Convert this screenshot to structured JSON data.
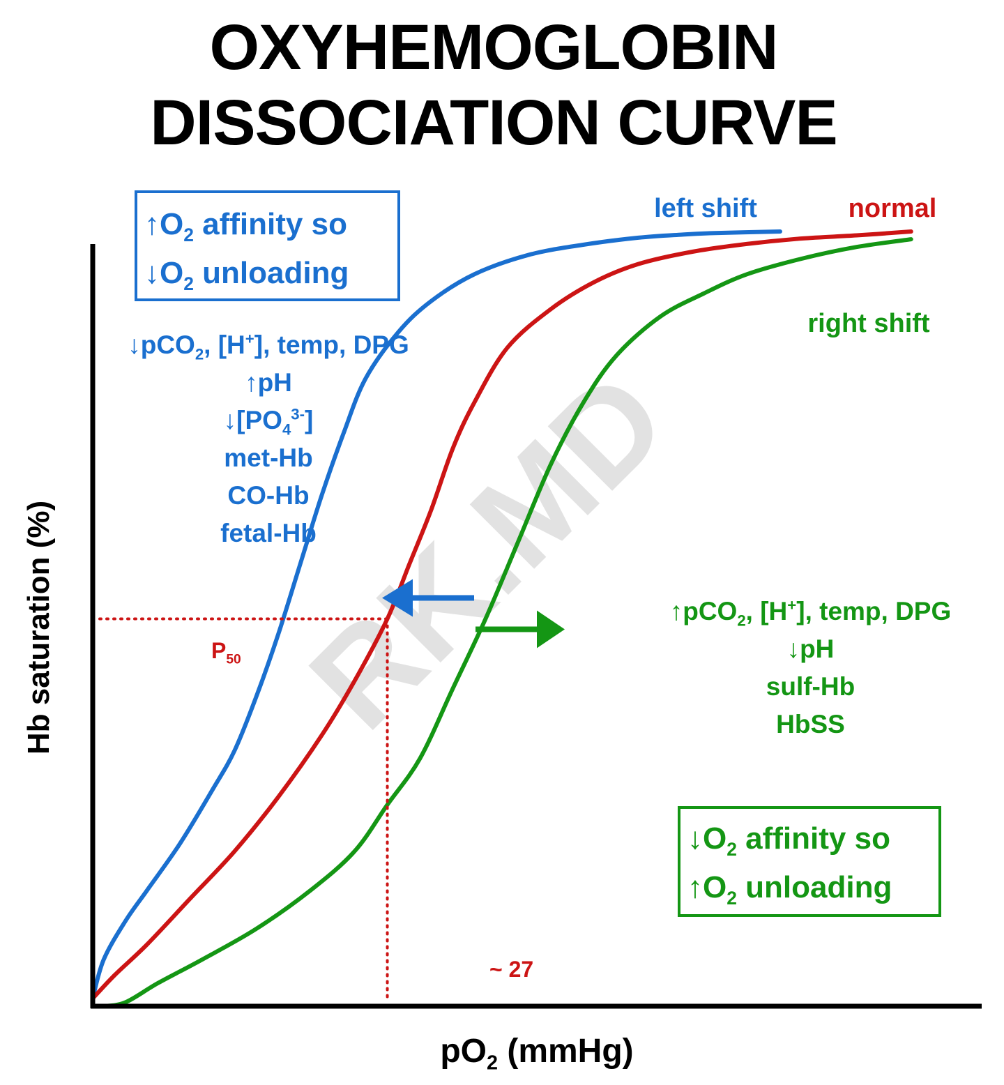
{
  "title": {
    "line1": "OXYHEMOGLOBIN",
    "line2": "DISSOCIATION CURVE"
  },
  "watermark": "RK.MD",
  "colors": {
    "left": "#1a6fcf",
    "normal": "#cc1414",
    "right": "#149614",
    "axis": "#000000"
  },
  "axes": {
    "xlabel_main": "pO",
    "xlabel_sub": "2",
    "xlabel_rest": " (mmHg)",
    "ylabel": "Hb saturation (%)",
    "xlim": [
      0,
      80
    ],
    "ylim": [
      0,
      100
    ]
  },
  "p50": {
    "label": "P",
    "label_sub": "50",
    "x_label": "~ 27",
    "x": 27,
    "y": 50
  },
  "chart_data": {
    "type": "line",
    "title": "OXYHEMOGLOBIN DISSOCIATION CURVE",
    "xlabel": "pO2 (mmHg)",
    "ylabel": "Hb saturation (%)",
    "xlim": [
      0,
      80
    ],
    "ylim": [
      0,
      100
    ],
    "series": [
      {
        "name": "left shift",
        "key": "left",
        "x": [
          0,
          1,
          3,
          5,
          8,
          11,
          13,
          15,
          17,
          19,
          21,
          23,
          25,
          28,
          31,
          35,
          40,
          45,
          50,
          54,
          57,
          63
        ],
        "values": [
          1,
          6,
          11,
          15,
          21,
          28,
          33,
          40,
          48,
          57,
          66,
          74,
          81,
          87,
          91,
          94.5,
          97,
          98.3,
          99.2,
          99.6,
          99.8,
          100
        ]
      },
      {
        "name": "normal",
        "key": "normal",
        "x": [
          0,
          2,
          5,
          9,
          13,
          17,
          21,
          24,
          27,
          29,
          31,
          33,
          35,
          38,
          42,
          46,
          50,
          55,
          60,
          65,
          70,
          75
        ],
        "values": [
          1,
          4,
          8,
          14,
          20,
          27,
          35,
          42,
          50,
          57,
          64,
          72,
          78,
          85,
          90,
          93.5,
          95.8,
          97.4,
          98.4,
          99.1,
          99.5,
          100
        ]
      },
      {
        "name": "right shift",
        "key": "right",
        "x": [
          1,
          3,
          6,
          10,
          15,
          20,
          24,
          27,
          30,
          33,
          36,
          39,
          42,
          45,
          48,
          52,
          56,
          60,
          65,
          70,
          75
        ],
        "values": [
          0,
          0.5,
          3,
          6,
          10,
          15,
          20,
          26,
          32,
          41,
          50,
          60,
          70,
          78,
          84,
          89,
          92,
          94.5,
          96.5,
          98,
          99
        ]
      }
    ],
    "annotations": [
      "P50",
      "~ 27"
    ]
  },
  "boxes": {
    "left": {
      "line1_arrow": "↑",
      "line1_o": "O",
      "line1_sub": "2",
      "line1_rest": " affinity so",
      "line2_arrow": "↓",
      "line2_o": "O",
      "line2_sub": "2",
      "line2_rest": " unloading"
    },
    "right": {
      "line1_arrow": "↓",
      "line1_o": "O",
      "line1_sub": "2",
      "line1_rest": " affinity so",
      "line2_arrow": "↑",
      "line2_o": "O",
      "line2_sub": "2",
      "line2_rest": " unloading"
    }
  },
  "factors_left": {
    "f1_a": "↓pCO",
    "f1_sub": "2",
    "f1_b": ", [H",
    "f1_sup": "+",
    "f1_c": "], temp, DPG",
    "f2": "↑pH",
    "f3_a": "↓[PO",
    "f3_sub": "4",
    "f3_sup": "3-",
    "f3_b": "]",
    "f4": "met-Hb",
    "f5": "CO-Hb",
    "f6": "fetal-Hb"
  },
  "factors_right": {
    "f1_a": "↑pCO",
    "f1_sub": "2",
    "f1_b": ", [H",
    "f1_sup": "+",
    "f1_c": "], temp, DPG",
    "f2": "↓pH",
    "f3": "sulf-Hb",
    "f4": "HbSS"
  }
}
